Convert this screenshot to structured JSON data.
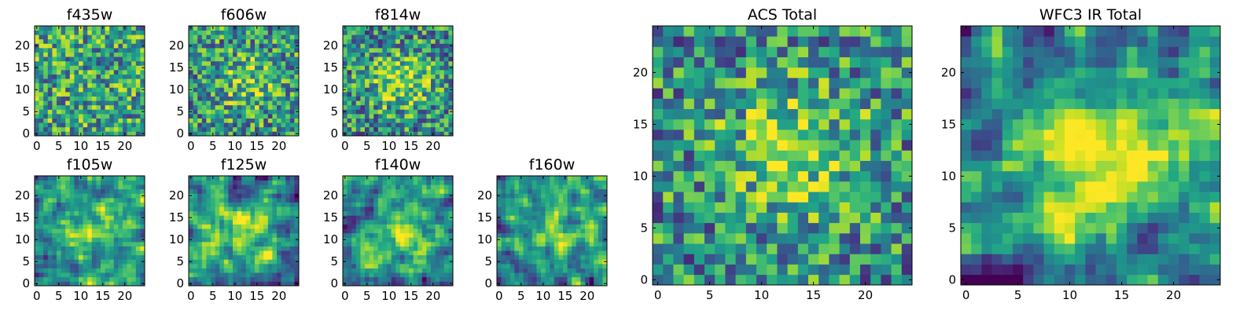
{
  "colormap": "viridis",
  "chart_data": [
    {
      "type": "heatmap",
      "title": "f435w",
      "xlim": [
        0,
        24
      ],
      "ylim": [
        0,
        24
      ],
      "x_ticks": [
        0,
        5,
        10,
        15,
        20
      ],
      "y_ticks": [
        0,
        5,
        10,
        15,
        20
      ],
      "grid_size": [
        25,
        25
      ],
      "seed": 11,
      "pattern": "noise"
    },
    {
      "type": "heatmap",
      "title": "f606w",
      "xlim": [
        0,
        24
      ],
      "ylim": [
        0,
        24
      ],
      "x_ticks": [
        0,
        5,
        10,
        15,
        20
      ],
      "y_ticks": [
        0,
        5,
        10,
        15,
        20
      ],
      "grid_size": [
        25,
        25
      ],
      "seed": 23,
      "pattern": "weak-center"
    },
    {
      "type": "heatmap",
      "title": "f814w",
      "xlim": [
        0,
        24
      ],
      "ylim": [
        0,
        24
      ],
      "x_ticks": [
        0,
        5,
        10,
        15,
        20
      ],
      "y_ticks": [
        0,
        5,
        10,
        15,
        20
      ],
      "grid_size": [
        25,
        25
      ],
      "seed": 37,
      "pattern": "center"
    },
    {
      "type": "heatmap",
      "title": "f105w",
      "xlim": [
        0,
        24
      ],
      "ylim": [
        0,
        24
      ],
      "x_ticks": [
        0,
        5,
        10,
        15,
        20
      ],
      "y_ticks": [
        0,
        5,
        10,
        15,
        20
      ],
      "grid_size": [
        25,
        25
      ],
      "seed": 41,
      "pattern": "smooth-center"
    },
    {
      "type": "heatmap",
      "title": "f125w",
      "xlim": [
        0,
        24
      ],
      "ylim": [
        0,
        24
      ],
      "x_ticks": [
        0,
        5,
        10,
        15,
        20
      ],
      "y_ticks": [
        0,
        5,
        10,
        15,
        20
      ],
      "grid_size": [
        25,
        25
      ],
      "seed": 53,
      "pattern": "smooth-center"
    },
    {
      "type": "heatmap",
      "title": "f140w",
      "xlim": [
        0,
        24
      ],
      "ylim": [
        0,
        24
      ],
      "x_ticks": [
        0,
        5,
        10,
        15,
        20
      ],
      "y_ticks": [
        0,
        5,
        10,
        15,
        20
      ],
      "grid_size": [
        25,
        25
      ],
      "seed": 67,
      "pattern": "smooth-center"
    },
    {
      "type": "heatmap",
      "title": "f160w",
      "xlim": [
        0,
        24
      ],
      "ylim": [
        0,
        24
      ],
      "x_ticks": [
        0,
        5,
        10,
        15,
        20
      ],
      "y_ticks": [
        0,
        5,
        10,
        15,
        20
      ],
      "grid_size": [
        25,
        25
      ],
      "seed": 79,
      "pattern": "smooth-center"
    },
    {
      "type": "heatmap",
      "title": "ACS Total",
      "xlim": [
        0,
        24
      ],
      "ylim": [
        0,
        24
      ],
      "x_ticks": [
        0,
        5,
        10,
        15,
        20
      ],
      "y_ticks": [
        0,
        5,
        10,
        15,
        20
      ],
      "grid_size": [
        25,
        25
      ],
      "seed": 89,
      "pattern": "center"
    },
    {
      "type": "heatmap",
      "title": "WFC3 IR Total",
      "xlim": [
        0,
        24
      ],
      "ylim": [
        0,
        24
      ],
      "x_ticks": [
        0,
        5,
        10,
        15,
        20
      ],
      "y_ticks": [
        0,
        5,
        10,
        15,
        20
      ],
      "grid_size": [
        25,
        25
      ],
      "seed": 97,
      "pattern": "strong-center"
    }
  ]
}
